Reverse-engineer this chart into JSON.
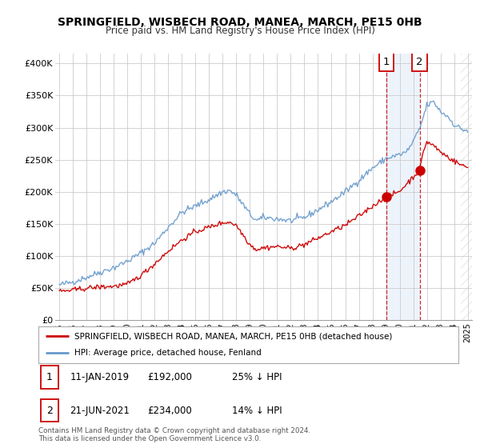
{
  "title": "SPRINGFIELD, WISBECH ROAD, MANEA, MARCH, PE15 0HB",
  "subtitle": "Price paid vs. HM Land Registry's House Price Index (HPI)",
  "ylabel_ticks": [
    "£0",
    "£50K",
    "£100K",
    "£150K",
    "£200K",
    "£250K",
    "£300K",
    "£350K",
    "£400K"
  ],
  "ytick_values": [
    0,
    50000,
    100000,
    150000,
    200000,
    250000,
    300000,
    350000,
    400000
  ],
  "ylim": [
    0,
    415000
  ],
  "xlim_start": 1994.7,
  "xlim_end": 2025.3,
  "xticks": [
    1995,
    1996,
    1997,
    1998,
    1999,
    2000,
    2001,
    2002,
    2003,
    2004,
    2005,
    2006,
    2007,
    2008,
    2009,
    2010,
    2011,
    2012,
    2013,
    2014,
    2015,
    2016,
    2017,
    2018,
    2019,
    2020,
    2021,
    2022,
    2023,
    2024,
    2025
  ],
  "hpi_color": "#6699cc",
  "price_color": "#cc0000",
  "marker1_date": 2019.03,
  "marker2_date": 2021.47,
  "marker1_price": 192000,
  "marker2_price": 234000,
  "marker1_label": "1",
  "marker2_label": "2",
  "hatch_start": 2024.5,
  "legend_line1": "SPRINGFIELD, WISBECH ROAD, MANEA, MARCH, PE15 0HB (detached house)",
  "legend_line2": "HPI: Average price, detached house, Fenland",
  "table_row1": [
    "1",
    "11-JAN-2019",
    "£192,000",
    "25% ↓ HPI"
  ],
  "table_row2": [
    "2",
    "21-JUN-2021",
    "£234,000",
    "14% ↓ HPI"
  ],
  "footnote": "Contains HM Land Registry data © Crown copyright and database right 2024.\nThis data is licensed under the Open Government Licence v3.0.",
  "background_color": "#ffffff",
  "grid_color": "#cccccc",
  "shade_color": "#ccddf5"
}
